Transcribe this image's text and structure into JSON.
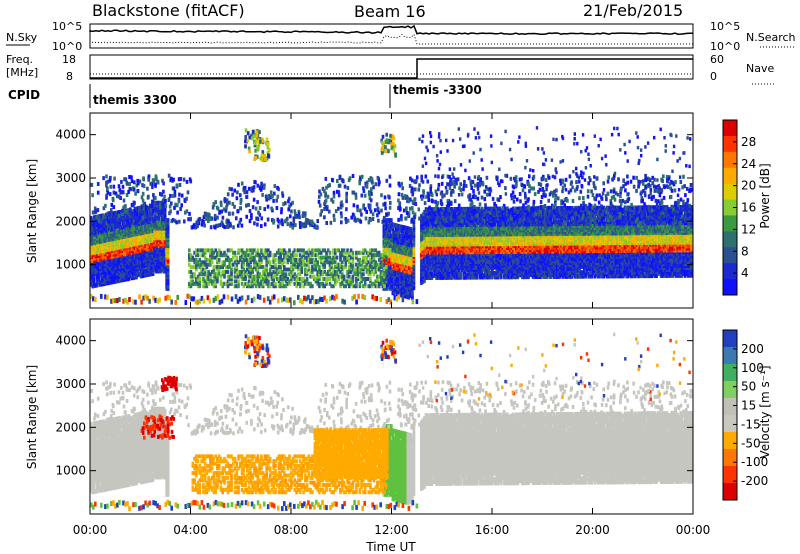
{
  "header": {
    "site": "Blackstone (fitACF)",
    "beam": "Beam 16",
    "date": "21/Feb/2015"
  },
  "strip_labels": {
    "nsky": "N.Sky",
    "nsky_ticks": [
      "10^5",
      "10^0"
    ],
    "nsearch": "N.Search",
    "nsearch_ticks": [
      "10^5",
      "10^0"
    ],
    "freq_top": "Freq.",
    "freq_unit": "[MHz]",
    "freq_ticks": [
      "18",
      "8"
    ],
    "nave": "Nave",
    "nave_ticks": [
      "60",
      "0"
    ],
    "cpid": "CPID",
    "cpid_1": "themis 3300",
    "cpid_2": "themis -3300"
  },
  "chart_data": [
    {
      "type": "heatmap",
      "name": "power",
      "ylabel": "Slant Range [km]",
      "yticks": [
        "1000",
        "2000",
        "3000",
        "4000"
      ],
      "colorbar_label": "Power [dB]",
      "colorbar_ticks": [
        "28",
        "24",
        "20",
        "16",
        "12",
        "8",
        "4"
      ],
      "colorbar_colors": [
        "#dd0000",
        "#ff3300",
        "#ff7700",
        "#ffaa00",
        "#ddcc00",
        "#88cc33",
        "#3a9a40",
        "#2e7070",
        "#2a5090",
        "#1a2ad0",
        "#1010ff"
      ]
    },
    {
      "type": "heatmap",
      "name": "velocity",
      "ylabel": "Slant Range [km]",
      "yticks": [
        "1000",
        "2000",
        "3000",
        "4000"
      ],
      "colorbar_label": "Velocity [m s⁻¹]",
      "colorbar_ticks": [
        "200",
        "100",
        "50",
        "15",
        "-15",
        "-50",
        "-100",
        "-200"
      ],
      "colorbar_colors": [
        "#2040c0",
        "#3a7ab0",
        "#40b060",
        "#80d060",
        "#c0c0b8",
        "#c8c8c0",
        "#ffaa00",
        "#ff7700",
        "#ff3300",
        "#dd0000"
      ]
    }
  ],
  "xaxis": {
    "label": "Time UT",
    "ticks": [
      "00:00",
      "04:00",
      "08:00",
      "12:00",
      "16:00",
      "20:00",
      "00:00"
    ]
  }
}
